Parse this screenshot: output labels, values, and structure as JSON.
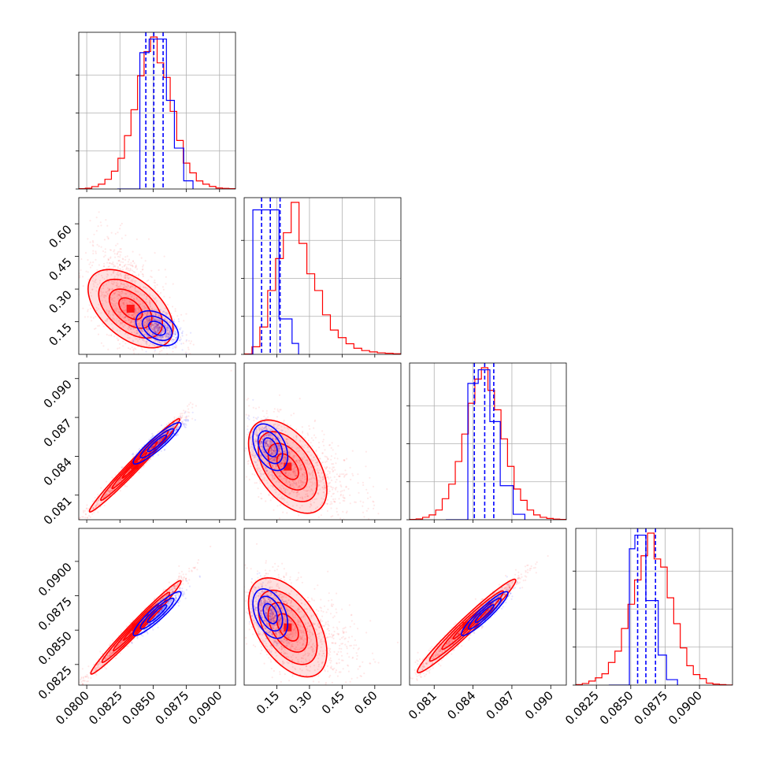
{
  "chart_data": {
    "type": "corner",
    "colors": {
      "primary": "#ff0000",
      "secondary": "#0000ff"
    },
    "parameters": [
      {
        "id": "p1",
        "range": [
          0.0794,
          0.0912
        ],
        "ticks": [
          "0.0800",
          "0.0825",
          "0.0850",
          "0.0875",
          "0.0900"
        ],
        "tick_values": [
          0.08,
          0.0825,
          0.085,
          0.0875,
          0.09
        ]
      },
      {
        "id": "p2",
        "range": [
          0.0,
          0.72
        ],
        "ticks": [
          "0.15",
          "0.30",
          "0.45",
          "0.60"
        ],
        "tick_values": [
          0.15,
          0.3,
          0.45,
          0.6
        ]
      },
      {
        "id": "p3",
        "range": [
          0.0791,
          0.0912
        ],
        "ticks": [
          "0.081",
          "0.084",
          "0.087",
          "0.090"
        ],
        "tick_values": [
          0.081,
          0.084,
          0.087,
          0.09
        ]
      },
      {
        "id": "p4",
        "range": [
          0.081,
          0.0924
        ],
        "ticks": [
          "0.0825",
          "0.0850",
          "0.0875",
          "0.0900"
        ],
        "tick_values": [
          0.0825,
          0.085,
          0.0875,
          0.09
        ]
      }
    ],
    "red_hist": [
      [
        0.2,
        0.5,
        1.5,
        3,
        6,
        11,
        19,
        33,
        49,
        70,
        85,
        94,
        78,
        69,
        48,
        30,
        16,
        10,
        5,
        3,
        1.6,
        0.6,
        0.4,
        0.2
      ],
      [
        0.3,
        5,
        18,
        42,
        63,
        80,
        100,
        73,
        53,
        42,
        26,
        16,
        11,
        7,
        4,
        2.5,
        1.6,
        1,
        0.7,
        0.4
      ],
      [
        0.2,
        0.5,
        1.5,
        3,
        6,
        13,
        22,
        36,
        53,
        72,
        87,
        94,
        80,
        68,
        50,
        33,
        19,
        12,
        6,
        3,
        1.5,
        0.8,
        0.4,
        0.2
      ],
      [
        0.3,
        1,
        2.5,
        4.5,
        7,
        14,
        21,
        35,
        50,
        65,
        80,
        94,
        78,
        73,
        54,
        38,
        23,
        12,
        6.5,
        4,
        1.2,
        0.6,
        0.3,
        0.1
      ]
    ],
    "blue_hist": [
      {
        "edges": [
          0.0823,
          0.084,
          0.0847,
          0.0853,
          0.086,
          0.0866,
          0.0873,
          0.088
        ],
        "values": [
          0,
          1,
          1.1,
          1.1,
          0.65,
          0.3,
          0.06
        ]
      },
      {
        "edges": [
          0.02,
          0.04,
          0.1,
          0.16,
          0.22,
          0.25
        ],
        "values": [
          0,
          1.06,
          1.06,
          0.26,
          0.08
        ]
      },
      {
        "edges": [
          0.0819,
          0.0836,
          0.0844,
          0.0853,
          0.0861,
          0.0871,
          0.088
        ],
        "values": [
          0,
          1,
          1.1,
          0.72,
          0.25,
          0.04
        ]
      },
      {
        "edges": [
          0.0834,
          0.0849,
          0.0853,
          0.0861,
          0.087,
          0.0876,
          0.0884
        ],
        "values": [
          0,
          1,
          1.1,
          0.62,
          0.22,
          0.04
        ]
      }
    ],
    "blue_quantiles": [
      [
        0.08445,
        0.08505,
        0.08575
      ],
      [
        0.08,
        0.12,
        0.165
      ],
      [
        0.0841,
        0.0849,
        0.0856
      ],
      [
        0.0855,
        0.0861,
        0.0868
      ]
    ],
    "pairs": [
      {
        "x": 0,
        "y": 1,
        "red": {
          "mean": [
            0.0833,
            0.21
          ],
          "std": [
            0.0016,
            0.09
          ],
          "rho": -0.5,
          "levels": [
            0.55,
            1.0,
            1.5,
            2.0
          ]
        },
        "blue": {
          "mean": [
            0.0853,
            0.12
          ],
          "std": [
            0.0008,
            0.04
          ],
          "rho": -0.4,
          "levels": [
            0.8,
            1.4,
            2.0
          ]
        }
      },
      {
        "x": 0,
        "y": 2,
        "red": {
          "mean": [
            0.0836,
            0.0833
          ],
          "std": [
            0.0017,
            0.0018
          ],
          "rho": 0.985,
          "levels": [
            0.55,
            1.0,
            1.5,
            2.0
          ]
        },
        "blue": {
          "mean": [
            0.0853,
            0.085
          ],
          "std": [
            0.0009,
            0.0008
          ],
          "rho": 0.92,
          "levels": [
            0.8,
            1.4,
            2.0
          ]
        }
      },
      {
        "x": 0,
        "y": 3,
        "red": {
          "mean": [
            0.0837,
            0.0852
          ],
          "std": [
            0.0017,
            0.0017
          ],
          "rho": 0.985,
          "levels": [
            0.55,
            1.0,
            1.5,
            2.0
          ]
        },
        "blue": {
          "mean": [
            0.0853,
            0.0862
          ],
          "std": [
            0.0009,
            0.0008
          ],
          "rho": 0.92,
          "levels": [
            0.8,
            1.4,
            2.0
          ]
        }
      },
      {
        "x": 1,
        "y": 2,
        "red": {
          "mean": [
            0.2,
            0.0832
          ],
          "std": [
            0.09,
            0.0018
          ],
          "rho": -0.5,
          "levels": [
            0.55,
            1.0,
            1.5,
            2.0
          ]
        },
        "blue": {
          "mean": [
            0.12,
            0.0847
          ],
          "std": [
            0.04,
            0.0009
          ],
          "rho": -0.4,
          "levels": [
            0.8,
            1.4,
            2.0
          ]
        }
      },
      {
        "x": 1,
        "y": 3,
        "red": {
          "mean": [
            0.2,
            0.0852
          ],
          "std": [
            0.09,
            0.0018
          ],
          "rho": -0.5,
          "levels": [
            0.55,
            1.0,
            1.5,
            2.0
          ]
        },
        "blue": {
          "mean": [
            0.12,
            0.0862
          ],
          "std": [
            0.04,
            0.0009
          ],
          "rho": -0.4,
          "levels": [
            0.8,
            1.4,
            2.0
          ]
        }
      },
      {
        "x": 2,
        "y": 3,
        "red": {
          "mean": [
            0.0835,
            0.0853
          ],
          "std": [
            0.0019,
            0.0017
          ],
          "rho": 0.975,
          "levels": [
            0.55,
            1.0,
            1.5,
            2.0
          ]
        },
        "blue": {
          "mean": [
            0.0849,
            0.0862
          ],
          "std": [
            0.0009,
            0.0008
          ],
          "rho": 0.93,
          "levels": [
            0.8,
            1.4,
            2.0
          ]
        }
      }
    ],
    "grid": true,
    "legend": null
  }
}
